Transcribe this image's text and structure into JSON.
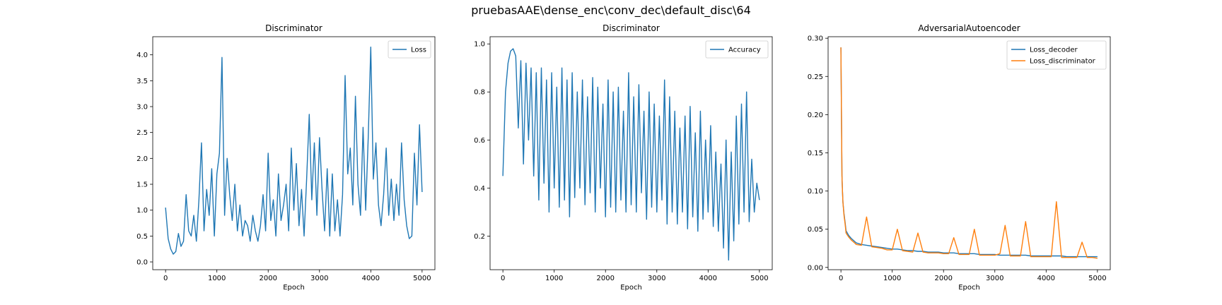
{
  "figure": {
    "suptitle": "pruebasAAE\\dense_enc\\conv_dec\\default_disc\\64"
  },
  "colors": {
    "blue": "#1f77b4",
    "orange": "#ff7f0e"
  },
  "chart_data": [
    {
      "type": "line",
      "title": "Discriminator",
      "xlabel": "Epoch",
      "ylabel": "",
      "xlim": [
        -250,
        5250
      ],
      "ylim": [
        -0.15,
        4.35
      ],
      "xticks": [
        0,
        1000,
        2000,
        3000,
        4000,
        5000
      ],
      "yticks": [
        0.0,
        0.5,
        1.0,
        1.5,
        2.0,
        2.5,
        3.0,
        3.5,
        4.0
      ],
      "ytick_labels": [
        "0.0",
        "0.5",
        "1.0",
        "1.5",
        "2.0",
        "2.5",
        "3.0",
        "3.5",
        "4.0"
      ],
      "grid": false,
      "legend_position": "top-right",
      "series": [
        {
          "name": "Loss",
          "color": "#1f77b4",
          "x": [
            0,
            50,
            100,
            150,
            200,
            250,
            300,
            350,
            400,
            450,
            500,
            550,
            600,
            650,
            700,
            750,
            800,
            850,
            900,
            950,
            1000,
            1050,
            1100,
            1150,
            1200,
            1250,
            1300,
            1350,
            1400,
            1450,
            1500,
            1550,
            1600,
            1650,
            1700,
            1750,
            1800,
            1850,
            1900,
            1950,
            2000,
            2050,
            2100,
            2150,
            2200,
            2250,
            2300,
            2350,
            2400,
            2450,
            2500,
            2550,
            2600,
            2650,
            2700,
            2750,
            2800,
            2850,
            2900,
            2950,
            3000,
            3050,
            3100,
            3150,
            3200,
            3250,
            3300,
            3350,
            3400,
            3450,
            3500,
            3550,
            3600,
            3650,
            3700,
            3750,
            3800,
            3850,
            3900,
            3950,
            4000,
            4050,
            4100,
            4150,
            4200,
            4250,
            4300,
            4350,
            4400,
            4450,
            4500,
            4550,
            4600,
            4650,
            4700,
            4750,
            4800,
            4850,
            4900,
            4950,
            5000
          ],
          "values": [
            1.05,
            0.45,
            0.25,
            0.15,
            0.2,
            0.55,
            0.3,
            0.4,
            1.3,
            0.6,
            0.5,
            0.9,
            0.4,
            1.2,
            2.3,
            0.6,
            1.4,
            0.9,
            1.8,
            0.5,
            1.7,
            2.1,
            3.95,
            0.9,
            2.0,
            1.3,
            0.8,
            1.5,
            0.6,
            1.1,
            0.5,
            0.8,
            0.7,
            0.4,
            0.9,
            0.6,
            0.4,
            0.7,
            1.3,
            0.6,
            2.1,
            0.8,
            1.2,
            0.5,
            1.7,
            0.8,
            1.1,
            1.5,
            0.6,
            2.2,
            1.0,
            1.9,
            0.7,
            1.4,
            0.5,
            1.6,
            2.85,
            1.2,
            2.3,
            0.9,
            2.4,
            1.4,
            0.6,
            1.8,
            0.5,
            1.7,
            0.6,
            1.2,
            0.5,
            1.3,
            3.6,
            1.7,
            2.2,
            1.1,
            3.2,
            1.5,
            0.9,
            2.6,
            1.0,
            2.4,
            4.15,
            1.6,
            2.3,
            1.1,
            0.7,
            1.3,
            2.2,
            0.9,
            1.6,
            0.8,
            1.5,
            0.9,
            2.3,
            1.2,
            0.7,
            0.45,
            0.5,
            2.1,
            1.1,
            2.65,
            1.35
          ]
        }
      ]
    },
    {
      "type": "line",
      "title": "Discriminator",
      "xlabel": "Epoch",
      "ylabel": "",
      "xlim": [
        -250,
        5250
      ],
      "ylim": [
        0.06,
        1.03
      ],
      "xticks": [
        0,
        1000,
        2000,
        3000,
        4000,
        5000
      ],
      "yticks": [
        0.2,
        0.4,
        0.6,
        0.8,
        1.0
      ],
      "ytick_labels": [
        "0.2",
        "0.4",
        "0.6",
        "0.8",
        "1.0"
      ],
      "grid": false,
      "legend_position": "top-right",
      "series": [
        {
          "name": "Accuracy",
          "color": "#1f77b4",
          "x": [
            0,
            50,
            100,
            150,
            200,
            250,
            300,
            350,
            400,
            450,
            500,
            550,
            600,
            650,
            700,
            750,
            800,
            850,
            900,
            950,
            1000,
            1050,
            1100,
            1150,
            1200,
            1250,
            1300,
            1350,
            1400,
            1450,
            1500,
            1550,
            1600,
            1650,
            1700,
            1750,
            1800,
            1850,
            1900,
            1950,
            2000,
            2050,
            2100,
            2150,
            2200,
            2250,
            2300,
            2350,
            2400,
            2450,
            2500,
            2550,
            2600,
            2650,
            2700,
            2750,
            2800,
            2850,
            2900,
            2950,
            3000,
            3050,
            3100,
            3150,
            3200,
            3250,
            3300,
            3350,
            3400,
            3450,
            3500,
            3550,
            3600,
            3650,
            3700,
            3750,
            3800,
            3850,
            3900,
            3950,
            4000,
            4050,
            4100,
            4150,
            4200,
            4250,
            4300,
            4350,
            4400,
            4450,
            4500,
            4550,
            4600,
            4650,
            4700,
            4750,
            4800,
            4850,
            4900,
            4950,
            5000
          ],
          "values": [
            0.45,
            0.8,
            0.92,
            0.97,
            0.98,
            0.95,
            0.65,
            0.93,
            0.5,
            0.92,
            0.6,
            0.9,
            0.45,
            0.88,
            0.35,
            0.9,
            0.42,
            0.85,
            0.3,
            0.88,
            0.4,
            0.82,
            0.32,
            0.9,
            0.35,
            0.85,
            0.28,
            0.88,
            0.36,
            0.8,
            0.4,
            0.85,
            0.33,
            0.78,
            0.38,
            0.86,
            0.3,
            0.82,
            0.4,
            0.75,
            0.28,
            0.85,
            0.32,
            0.8,
            0.3,
            0.82,
            0.35,
            0.72,
            0.3,
            0.88,
            0.33,
            0.78,
            0.3,
            0.83,
            0.38,
            0.72,
            0.27,
            0.8,
            0.32,
            0.75,
            0.3,
            0.7,
            0.35,
            0.85,
            0.25,
            0.78,
            0.3,
            0.72,
            0.25,
            0.65,
            0.3,
            0.7,
            0.23,
            0.74,
            0.28,
            0.63,
            0.22,
            0.72,
            0.27,
            0.6,
            0.3,
            0.66,
            0.24,
            0.55,
            0.22,
            0.5,
            0.15,
            0.6,
            0.1,
            0.55,
            0.18,
            0.7,
            0.25,
            0.75,
            0.3,
            0.8,
            0.26,
            0.52,
            0.3,
            0.42,
            0.35
          ]
        }
      ]
    },
    {
      "type": "line",
      "title": "AdversarialAutoencoder",
      "xlabel": "Epoch",
      "ylabel": "",
      "xlim": [
        -250,
        5250
      ],
      "ylim": [
        -0.003,
        0.302
      ],
      "xticks": [
        0,
        1000,
        2000,
        3000,
        4000,
        5000
      ],
      "yticks": [
        0.0,
        0.05,
        0.1,
        0.15,
        0.2,
        0.25,
        0.3
      ],
      "ytick_labels": [
        "0.00",
        "0.05",
        "0.10",
        "0.15",
        "0.20",
        "0.25",
        "0.30"
      ],
      "grid": false,
      "legend_position": "top-right",
      "series": [
        {
          "name": "Loss_decoder",
          "color": "#1f77b4",
          "x": [
            0,
            10,
            20,
            30,
            40,
            60,
            80,
            100,
            150,
            200,
            250,
            300,
            400,
            500,
            600,
            700,
            800,
            900,
            1000,
            1100,
            1200,
            1300,
            1400,
            1500,
            1600,
            1700,
            1800,
            1900,
            2000,
            2100,
            2200,
            2300,
            2400,
            2500,
            2600,
            2700,
            2800,
            2900,
            3000,
            3100,
            3200,
            3300,
            3400,
            3500,
            3600,
            3700,
            3800,
            3900,
            4000,
            4100,
            4200,
            4300,
            4400,
            4500,
            4600,
            4700,
            4800,
            4900,
            5000
          ],
          "values": [
            0.288,
            0.2,
            0.12,
            0.1,
            0.085,
            0.07,
            0.06,
            0.048,
            0.042,
            0.038,
            0.035,
            0.032,
            0.03,
            0.029,
            0.028,
            0.027,
            0.026,
            0.025,
            0.024,
            0.024,
            0.023,
            0.022,
            0.022,
            0.021,
            0.021,
            0.02,
            0.02,
            0.02,
            0.019,
            0.019,
            0.019,
            0.018,
            0.018,
            0.018,
            0.018,
            0.017,
            0.017,
            0.017,
            0.017,
            0.016,
            0.016,
            0.016,
            0.016,
            0.016,
            0.016,
            0.015,
            0.015,
            0.015,
            0.015,
            0.015,
            0.015,
            0.015,
            0.014,
            0.014,
            0.014,
            0.014,
            0.014,
            0.014,
            0.014
          ]
        },
        {
          "name": "Loss_discriminator",
          "color": "#ff7f0e",
          "x": [
            0,
            10,
            20,
            30,
            40,
            60,
            80,
            100,
            150,
            200,
            250,
            300,
            400,
            500,
            600,
            700,
            800,
            900,
            1000,
            1100,
            1200,
            1300,
            1400,
            1500,
            1600,
            1700,
            1800,
            1900,
            2000,
            2100,
            2200,
            2300,
            2400,
            2500,
            2600,
            2700,
            2800,
            2900,
            3000,
            3100,
            3200,
            3300,
            3400,
            3500,
            3600,
            3700,
            3800,
            3900,
            4000,
            4100,
            4200,
            4300,
            4400,
            4500,
            4600,
            4700,
            4800,
            4900,
            5000
          ],
          "values": [
            0.288,
            0.2,
            0.12,
            0.1,
            0.085,
            0.068,
            0.058,
            0.045,
            0.04,
            0.036,
            0.033,
            0.03,
            0.029,
            0.066,
            0.027,
            0.026,
            0.025,
            0.023,
            0.023,
            0.05,
            0.022,
            0.021,
            0.02,
            0.045,
            0.02,
            0.019,
            0.019,
            0.019,
            0.018,
            0.018,
            0.039,
            0.017,
            0.017,
            0.017,
            0.05,
            0.016,
            0.016,
            0.016,
            0.016,
            0.018,
            0.055,
            0.015,
            0.015,
            0.015,
            0.06,
            0.014,
            0.014,
            0.014,
            0.014,
            0.014,
            0.086,
            0.013,
            0.013,
            0.013,
            0.013,
            0.033,
            0.013,
            0.013,
            0.012
          ]
        }
      ]
    }
  ]
}
